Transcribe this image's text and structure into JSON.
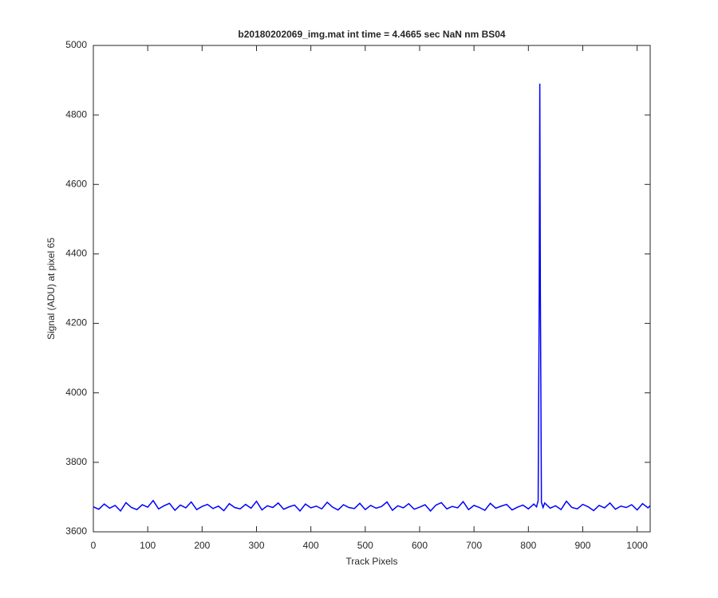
{
  "chart_data": {
    "type": "line",
    "title": "b20180202069_img.mat int time = 4.4665 sec  NaN nm BS04",
    "x_label": "Track Pixels",
    "y_label": "Signal (ADU) at pixel 65",
    "color": "#0000ff",
    "x": [
      0,
      10,
      20,
      30,
      40,
      50,
      60,
      70,
      80,
      90,
      100,
      110,
      120,
      130,
      140,
      150,
      160,
      170,
      180,
      190,
      200,
      210,
      220,
      230,
      240,
      250,
      260,
      270,
      280,
      290,
      300,
      310,
      320,
      330,
      340,
      350,
      360,
      370,
      380,
      390,
      400,
      410,
      420,
      430,
      440,
      450,
      460,
      470,
      480,
      490,
      500,
      510,
      520,
      530,
      540,
      550,
      560,
      570,
      580,
      590,
      600,
      610,
      620,
      630,
      640,
      650,
      660,
      670,
      680,
      690,
      700,
      710,
      720,
      730,
      740,
      750,
      760,
      770,
      780,
      790,
      800,
      810,
      815,
      818,
      820,
      821,
      822,
      824,
      827,
      830,
      840,
      850,
      860,
      870,
      880,
      890,
      900,
      910,
      920,
      930,
      940,
      950,
      960,
      970,
      980,
      990,
      1000,
      1010,
      1020,
      1024
    ],
    "values": [
      3672,
      3665,
      3680,
      3668,
      3676,
      3660,
      3684,
      3670,
      3664,
      3678,
      3671,
      3690,
      3666,
      3675,
      3682,
      3662,
      3677,
      3669,
      3686,
      3664,
      3673,
      3679,
      3667,
      3674,
      3661,
      3681,
      3670,
      3666,
      3679,
      3668,
      3688,
      3663,
      3675,
      3670,
      3683,
      3665,
      3672,
      3677,
      3660,
      3680,
      3669,
      3674,
      3666,
      3685,
      3671,
      3663,
      3678,
      3670,
      3667,
      3682,
      3664,
      3676,
      3668,
      3673,
      3686,
      3662,
      3675,
      3669,
      3681,
      3665,
      3671,
      3678,
      3660,
      3677,
      3684,
      3666,
      3673,
      3669,
      3687,
      3664,
      3676,
      3670,
      3662,
      3682,
      3668,
      3674,
      3679,
      3663,
      3671,
      3677,
      3666,
      3680,
      3672,
      3690,
      4300,
      4890,
      4300,
      3685,
      3670,
      3683,
      3668,
      3675,
      3664,
      3688,
      3670,
      3666,
      3679,
      3672,
      3661,
      3676,
      3669,
      3683,
      3665,
      3674,
      3670,
      3678,
      3663,
      3681,
      3669,
      3675
    ],
    "xlim": [
      0,
      1024
    ],
    "ylim": [
      3600,
      5000
    ],
    "xticks": [
      0,
      100,
      200,
      300,
      400,
      500,
      600,
      700,
      800,
      900,
      1000
    ],
    "yticks": [
      3600,
      3800,
      4000,
      4200,
      4400,
      4600,
      4800,
      5000
    ]
  }
}
